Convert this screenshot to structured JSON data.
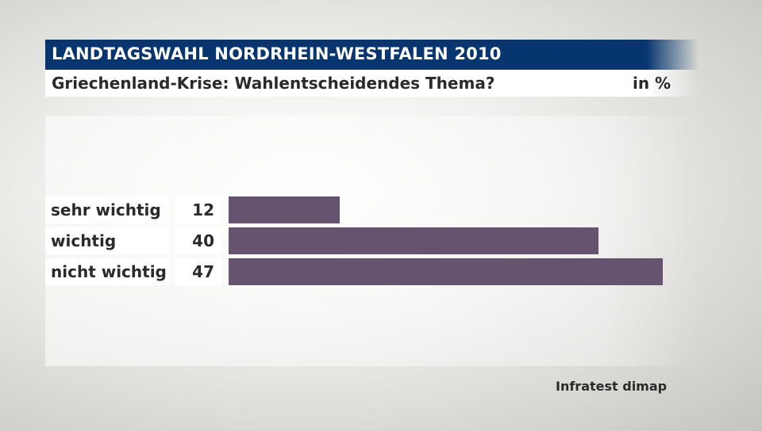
{
  "header": {
    "title": "LANDTAGSWAHL NORDRHEIN-WESTFALEN 2010",
    "subtitle": "Griechenland-Krise: Wahlentscheidendes Thema?",
    "unit": "in %"
  },
  "footer": {
    "source": "Infratest dimap"
  },
  "chart_data": {
    "type": "bar",
    "orientation": "horizontal",
    "title": "Griechenland-Krise: Wahlentscheidendes Thema?",
    "categories": [
      "sehr wichtig",
      "wichtig",
      "nicht wichtig"
    ],
    "values": [
      12,
      40,
      47
    ],
    "data_labels": [
      "12",
      "40",
      "47"
    ],
    "xlim": [
      0,
      47
    ],
    "grid": false,
    "colors": {
      "bar": "#66536f",
      "title_bar": "#063570"
    }
  }
}
